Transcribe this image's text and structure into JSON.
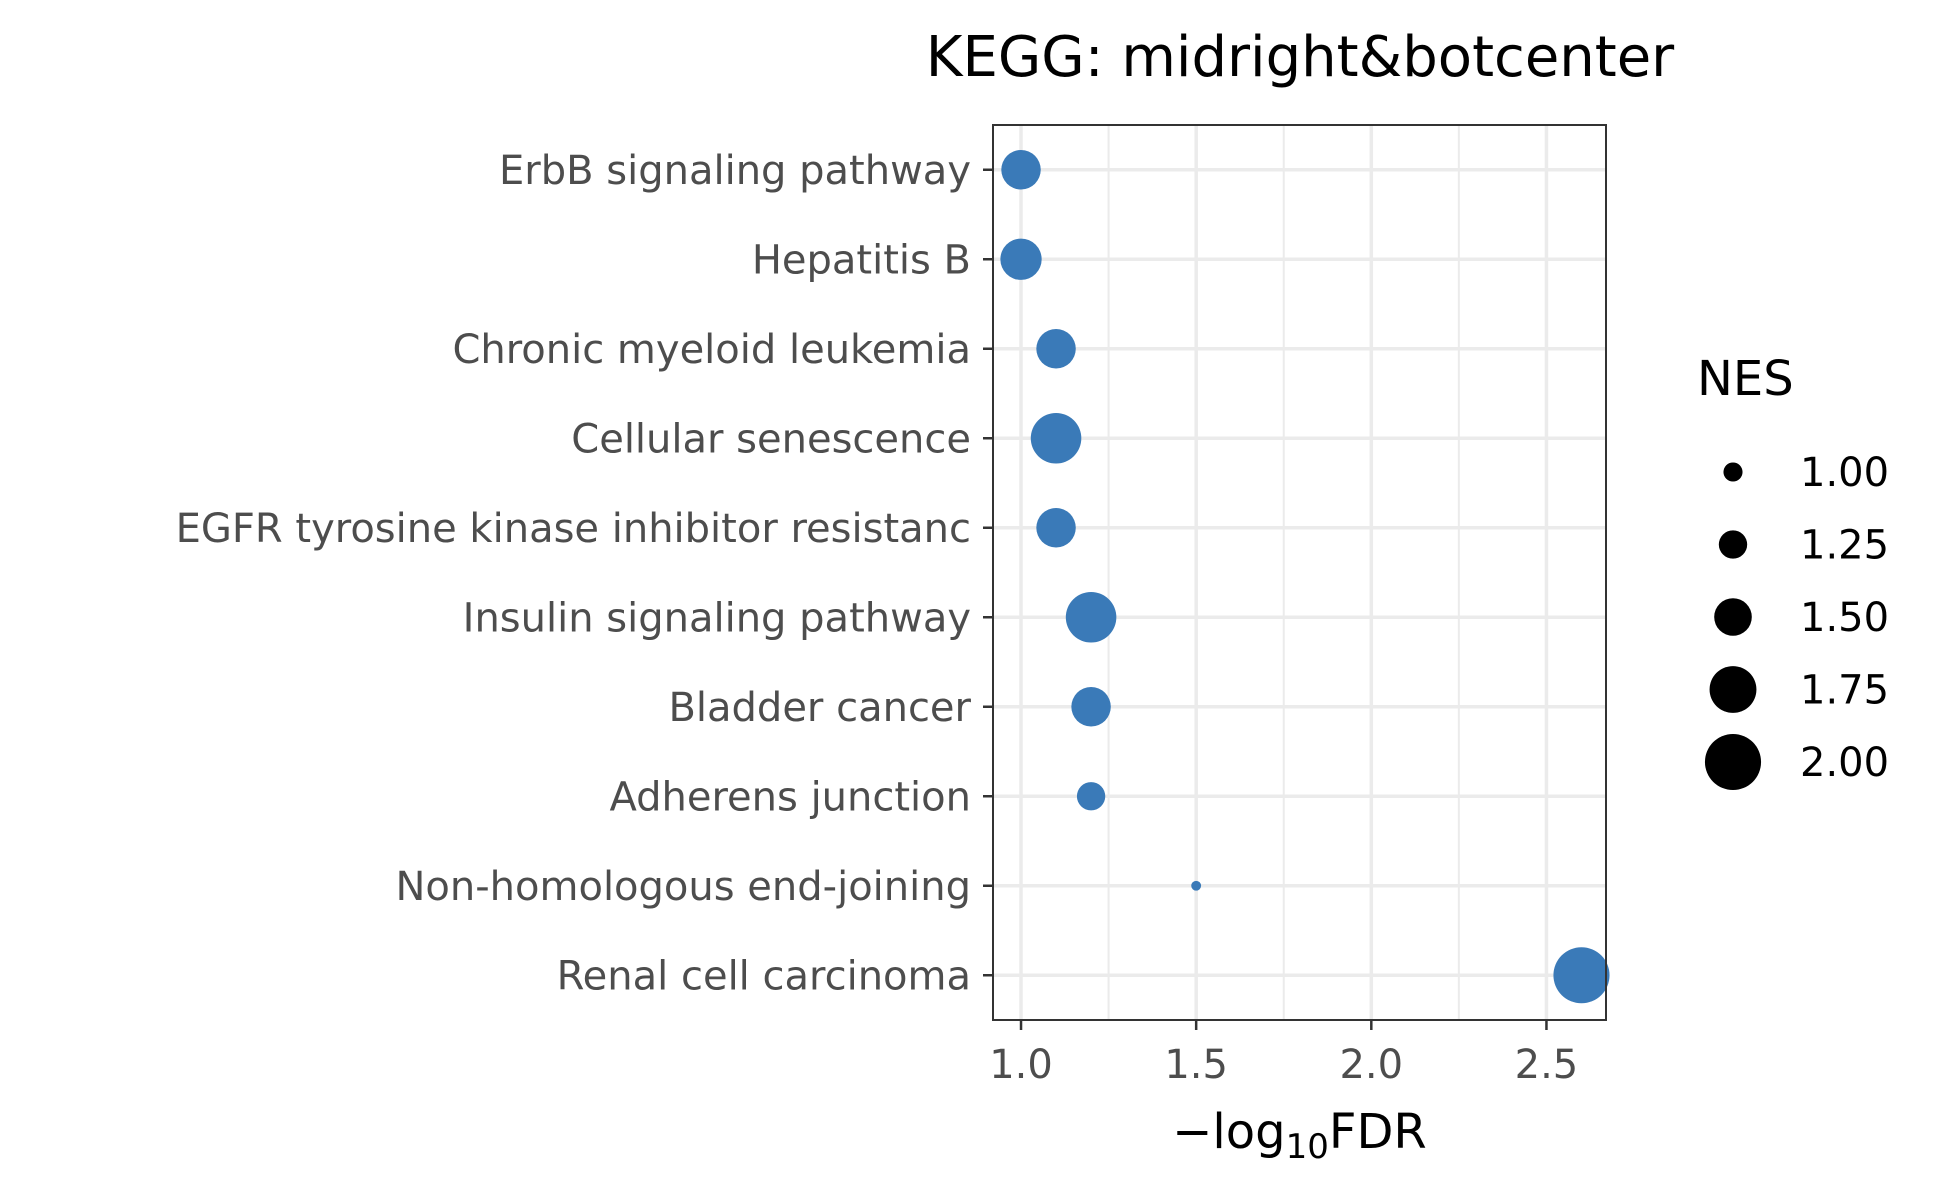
{
  "chart_data": {
    "type": "scatter",
    "title": "KEGG: midright&botcenter",
    "xlabel_prefix": "−log",
    "xlabel_sub": "10",
    "xlabel_suffix": "FDR",
    "xlim": [
      0.92,
      2.67
    ],
    "xticks": [
      1.0,
      1.5,
      2.0,
      2.5
    ],
    "xtick_labels": [
      "1.0",
      "1.5",
      "2.0",
      "2.5"
    ],
    "point_color": "#3a7ab8",
    "grid": true,
    "legend_position": "right",
    "size_legend": {
      "title": "NES",
      "values": [
        1.0,
        1.25,
        1.5,
        1.75,
        2.0
      ],
      "labels": [
        "1.00",
        "1.25",
        "1.50",
        "1.75",
        "2.00"
      ]
    },
    "points": [
      {
        "label": "ErbB signaling pathway",
        "x": 1.0,
        "size": 1.55
      },
      {
        "label": "Hepatitis B",
        "x": 1.0,
        "size": 1.6
      },
      {
        "label": "Chronic myeloid leukemia",
        "x": 1.1,
        "size": 1.55
      },
      {
        "label": "Cellular senescence",
        "x": 1.1,
        "size": 1.85
      },
      {
        "label": "EGFR tyrosine kinase inhibitor resistanc",
        "x": 1.1,
        "size": 1.55
      },
      {
        "label": "Insulin signaling pathway",
        "x": 1.2,
        "size": 1.85
      },
      {
        "label": "Bladder cancer",
        "x": 1.2,
        "size": 1.55
      },
      {
        "label": "Adherens junction",
        "x": 1.2,
        "size": 1.25
      },
      {
        "label": "Non-homologous end-joining",
        "x": 1.5,
        "size": 0.75
      },
      {
        "label": "Renal cell carcinoma",
        "x": 2.6,
        "size": 2.0
      }
    ]
  }
}
